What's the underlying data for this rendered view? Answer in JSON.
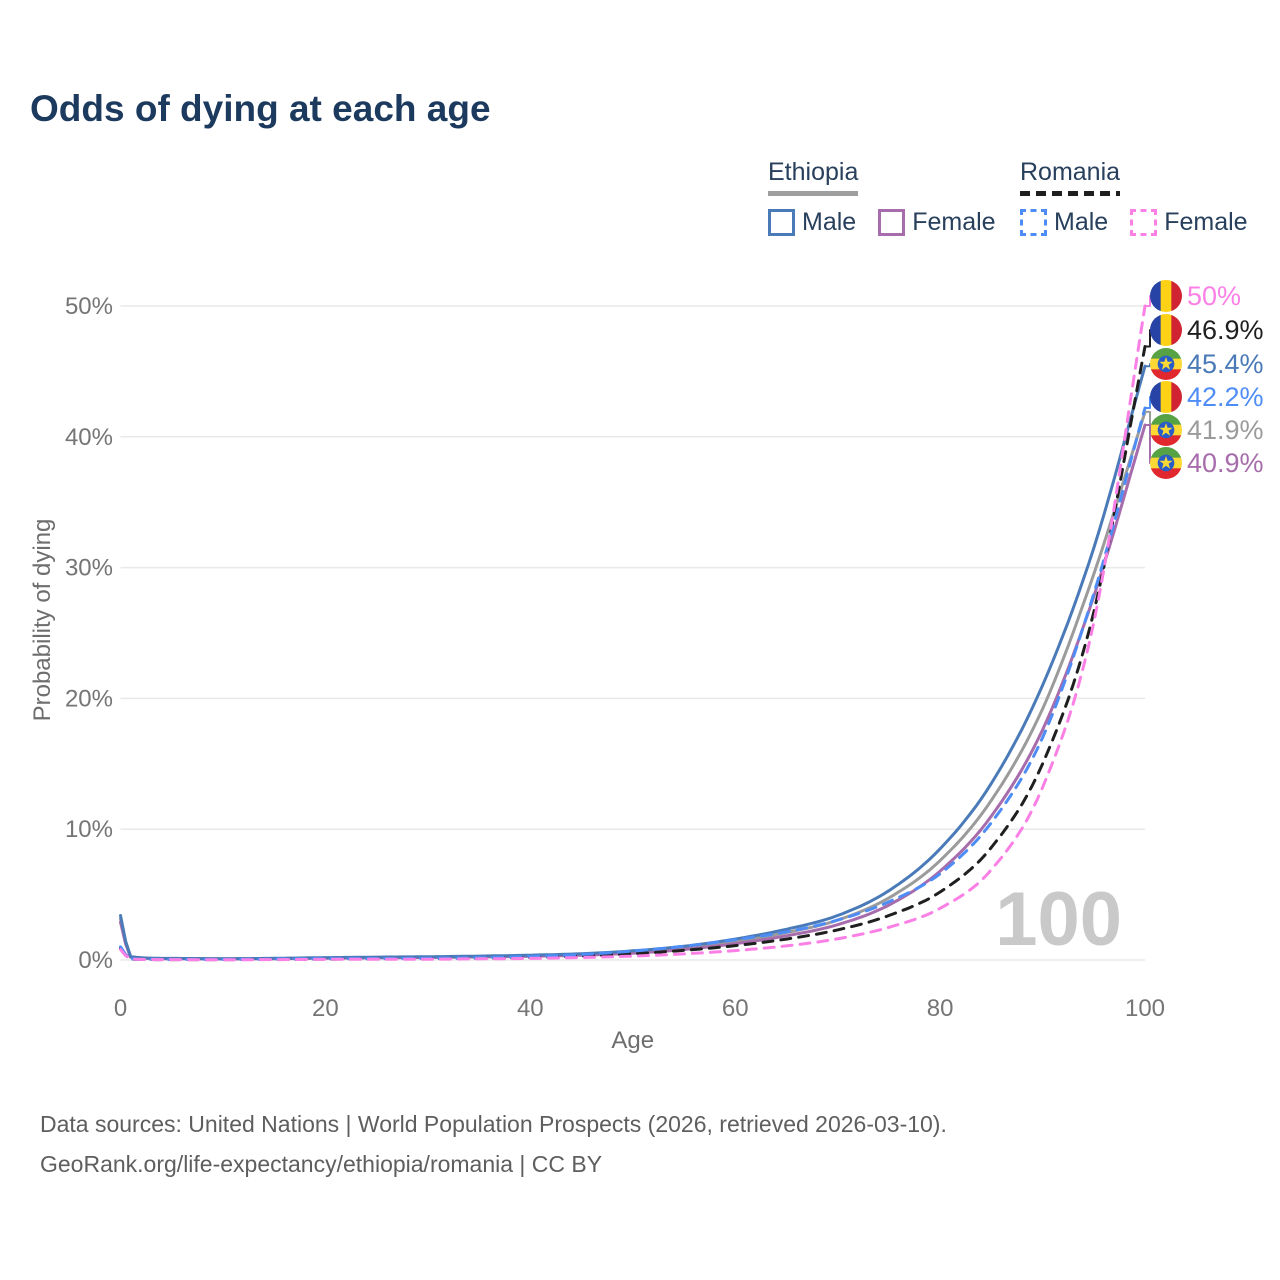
{
  "title": "Odds of dying at each age",
  "legend": {
    "groups": [
      {
        "label": "Ethiopia",
        "line_style": "solid",
        "line_color": "#9e9e9e",
        "items": [
          {
            "label": "Male",
            "series": "Ethiopia Male"
          },
          {
            "label": "Female",
            "series": "Ethiopia Female"
          }
        ]
      },
      {
        "label": "Romania",
        "line_style": "dashed",
        "line_color": "#1f1f1f",
        "items": [
          {
            "label": "Male",
            "series": "Romania Male"
          },
          {
            "label": "Female",
            "series": "Romania Female"
          }
        ]
      }
    ]
  },
  "watermark": "100",
  "footer": {
    "line1": "Data sources: United Nations | World Population Prospects (2026, retrieved 2026-03-10).",
    "line2": "GeoRank.org/life-expectancy/ethiopia/romania | CC BY"
  },
  "chart_data": {
    "type": "line",
    "title": "Odds of dying at each age",
    "xlabel": "Age",
    "ylabel": "Probability of dying",
    "xlim": [
      0,
      100
    ],
    "ylim": [
      0,
      50
    ],
    "grid": "horizontal",
    "x_ticks": [
      {
        "value": 0,
        "label": "0"
      },
      {
        "value": 20,
        "label": "20"
      },
      {
        "value": 40,
        "label": "40"
      },
      {
        "value": 60,
        "label": "60"
      },
      {
        "value": 80,
        "label": "80"
      },
      {
        "value": 100,
        "label": "100"
      }
    ],
    "y_ticks": [
      {
        "value": 0,
        "label": "0%"
      },
      {
        "value": 10,
        "label": "10%"
      },
      {
        "value": 20,
        "label": "20%"
      },
      {
        "value": 30,
        "label": "30%"
      },
      {
        "value": 40,
        "label": "40%"
      },
      {
        "value": 50,
        "label": "50%"
      }
    ],
    "ages": [
      0,
      1,
      5,
      10,
      15,
      20,
      25,
      30,
      35,
      40,
      45,
      50,
      55,
      60,
      65,
      70,
      75,
      80,
      85,
      90,
      95,
      100
    ],
    "series": [
      {
        "name": "Ethiopia",
        "country": "Ethiopia",
        "sex": "All",
        "color": "#9b9b9b",
        "dashed": false,
        "values": [
          3.15,
          0.23,
          0.11,
          0.09,
          0.11,
          0.15,
          0.19,
          0.22,
          0.26,
          0.32,
          0.42,
          0.6,
          0.92,
          1.42,
          2.1,
          3.05,
          4.75,
          7.6,
          12.2,
          19.2,
          29.5,
          41.9
        ]
      },
      {
        "name": "Ethiopia Female",
        "country": "Ethiopia",
        "sex": "Female",
        "color": "#a76cab",
        "dashed": false,
        "values": [
          2.9,
          0.21,
          0.1,
          0.08,
          0.1,
          0.13,
          0.16,
          0.19,
          0.23,
          0.28,
          0.37,
          0.52,
          0.8,
          1.25,
          1.85,
          2.7,
          4.2,
          6.8,
          11.0,
          17.6,
          27.8,
          40.9
        ]
      },
      {
        "name": "Ethiopia Male",
        "country": "Ethiopia",
        "sex": "Male",
        "color": "#4a7ab8",
        "dashed": false,
        "values": [
          3.4,
          0.25,
          0.12,
          0.1,
          0.13,
          0.18,
          0.22,
          0.25,
          0.3,
          0.37,
          0.48,
          0.7,
          1.05,
          1.6,
          2.35,
          3.4,
          5.3,
          8.5,
          13.5,
          21.0,
          31.5,
          45.4
        ]
      },
      {
        "name": "Romania",
        "country": "Romania",
        "sex": "All",
        "color": "#1f1f1f",
        "dashed": true,
        "values": [
          0.9,
          0.07,
          0.03,
          0.03,
          0.05,
          0.07,
          0.08,
          0.1,
          0.13,
          0.19,
          0.3,
          0.48,
          0.74,
          1.1,
          1.6,
          2.3,
          3.4,
          5.2,
          8.6,
          15.0,
          26.6,
          46.9
        ]
      },
      {
        "name": "Romania Male",
        "country": "Romania",
        "sex": "Male",
        "color": "#4f8df6",
        "dashed": true,
        "values": [
          1.0,
          0.08,
          0.04,
          0.04,
          0.07,
          0.1,
          0.11,
          0.13,
          0.18,
          0.27,
          0.42,
          0.68,
          1.05,
          1.55,
          2.15,
          3.05,
          4.45,
          6.6,
          10.5,
          17.0,
          28.0,
          42.2
        ]
      },
      {
        "name": "Romania Female",
        "country": "Romania",
        "sex": "Female",
        "color": "#fb80e6",
        "dashed": true,
        "values": [
          0.8,
          0.06,
          0.03,
          0.02,
          0.03,
          0.05,
          0.05,
          0.06,
          0.09,
          0.12,
          0.19,
          0.3,
          0.47,
          0.72,
          1.08,
          1.62,
          2.5,
          3.95,
          6.9,
          13.2,
          25.8,
          50.0
        ]
      }
    ],
    "end_labels": [
      {
        "text": "50%",
        "series": "Romania Female",
        "flag": "romania"
      },
      {
        "text": "46.9%",
        "series": "Romania",
        "flag": "romania"
      },
      {
        "text": "45.4%",
        "series": "Ethiopia Male",
        "flag": "ethiopia"
      },
      {
        "text": "42.2%",
        "series": "Romania Male",
        "flag": "romania"
      },
      {
        "text": "41.9%",
        "series": "Ethiopia",
        "flag": "ethiopia"
      },
      {
        "text": "40.9%",
        "series": "Ethiopia Female",
        "flag": "ethiopia"
      }
    ],
    "legend_position": "top-right",
    "colors": {
      "title_text": "#1c3a5e",
      "axis_text": "#757575",
      "gridline": "#e9e9e9",
      "watermark": "#c9c9c9",
      "footer_text": "#5e5e5e",
      "flag_romania": [
        "#2743a5",
        "#fcd116",
        "#d02433"
      ],
      "flag_ethiopia": [
        "#57a245",
        "#fcd934",
        "#e0282e",
        "#2a5cc8"
      ]
    }
  }
}
